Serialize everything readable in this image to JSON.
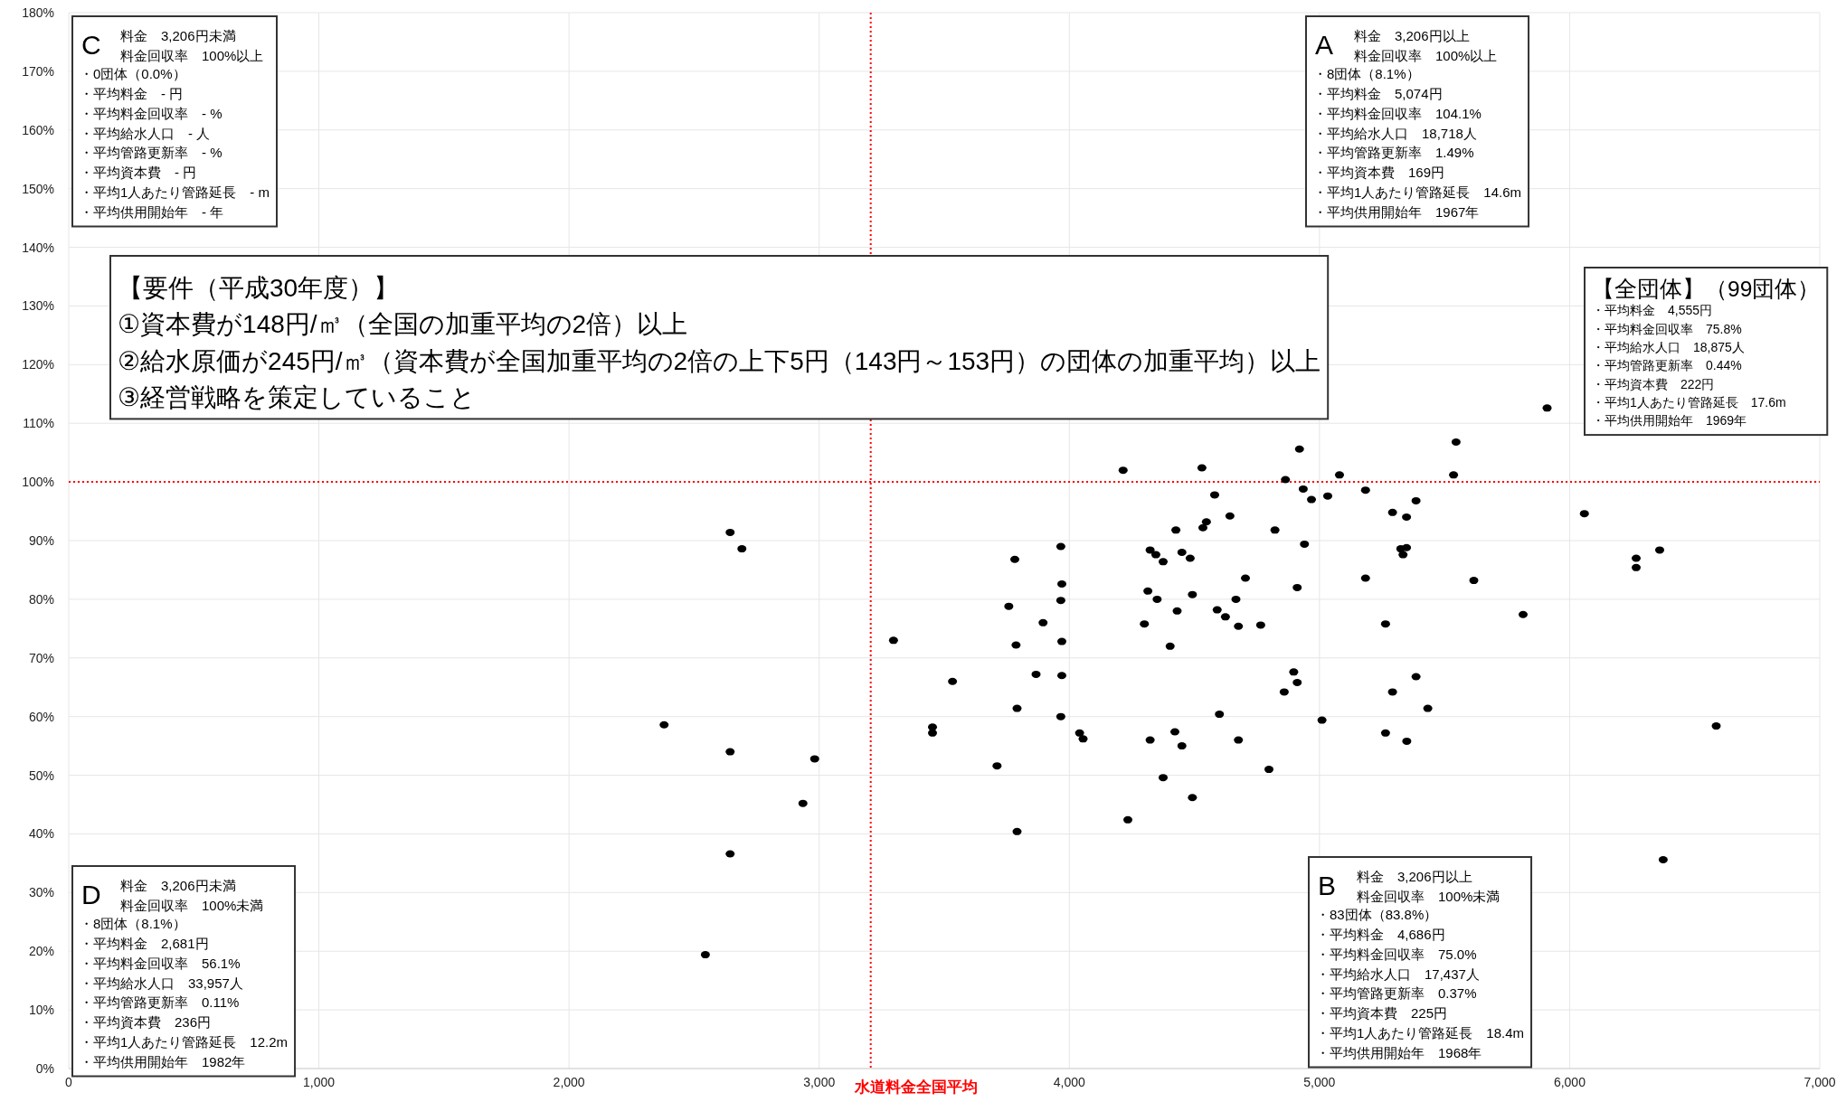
{
  "chart_data": {
    "type": "scatter",
    "color": "#000000",
    "marker": "circle",
    "grid": true,
    "xlim": [
      0,
      7000
    ],
    "ylim": [
      0,
      180
    ],
    "xticks": [
      0,
      {
        "value": 1000,
        "label": "1,000"
      },
      {
        "value": 2000,
        "label": "2,000"
      },
      {
        "value": 3000,
        "label": "3,000"
      },
      {
        "value": 4000,
        "label": "4,000"
      },
      {
        "value": 5000,
        "label": "5,000"
      },
      {
        "value": 6000,
        "label": "6,000"
      },
      {
        "value": 7000,
        "label": "7,000"
      }
    ],
    "yticks": [
      {
        "value": 0,
        "label": "0%"
      },
      {
        "value": 10,
        "label": "10%"
      },
      {
        "value": 20,
        "label": "20%"
      },
      {
        "value": 30,
        "label": "30%"
      },
      {
        "value": 40,
        "label": "40%"
      },
      {
        "value": 50,
        "label": "50%"
      },
      {
        "value": 60,
        "label": "60%"
      },
      {
        "value": 70,
        "label": "70%"
      },
      {
        "value": 80,
        "label": "80%"
      },
      {
        "value": 90,
        "label": "90%"
      },
      {
        "value": 100,
        "label": "100%"
      },
      {
        "value": 110,
        "label": "110%"
      },
      {
        "value": 120,
        "label": "120%"
      },
      {
        "value": 130,
        "label": "130%"
      },
      {
        "value": 140,
        "label": "140%"
      },
      {
        "value": 150,
        "label": "150%"
      },
      {
        "value": 160,
        "label": "160%"
      },
      {
        "value": 170,
        "label": "170%"
      },
      {
        "value": 180,
        "label": "180%"
      }
    ],
    "x": [
      5910,
      5546,
      4920,
      4215,
      4530,
      5080,
      5536,
      4864,
      4935,
      4581,
      4968,
      5033,
      5184,
      5386,
      6059,
      5292,
      5348,
      4642,
      4548,
      4534,
      4426,
      4822,
      4940,
      5325,
      5348,
      5334,
      4323,
      4346,
      4375,
      4450,
      4483,
      3966,
      3782,
      2644,
      2691,
      6266,
      6266,
      6360,
      5617,
      4704,
      5184,
      4911,
      3970,
      4314,
      4351,
      4492,
      4666,
      4591,
      4624,
      4676,
      4431,
      3758,
      3966,
      3895,
      4765,
      5814,
      4300,
      5264,
      3297,
      3970,
      4403,
      3787,
      3867,
      3970,
      4897,
      4911,
      3533,
      5386,
      4859,
      5292,
      3791,
      3966,
      4600,
      5433,
      5010,
      2380,
      6586,
      3453,
      3453,
      4041,
      4055,
      4422,
      4323,
      4450,
      4676,
      5264,
      5349,
      2644,
      2982,
      3711,
      4798,
      4375,
      2935,
      4492,
      3791,
      4234,
      2644,
      6374,
      2545
    ],
    "values": [
      112.6,
      106.8,
      105.6,
      102.0,
      102.4,
      101.2,
      101.2,
      100.4,
      98.8,
      97.8,
      97.0,
      97.6,
      98.6,
      96.8,
      94.6,
      94.8,
      94.0,
      94.2,
      93.2,
      92.2,
      91.8,
      91.8,
      89.4,
      88.6,
      88.8,
      87.6,
      88.4,
      87.6,
      86.4,
      88.0,
      87.0,
      89.0,
      86.8,
      91.4,
      88.6,
      87.0,
      85.4,
      88.4,
      83.2,
      83.6,
      83.6,
      82.0,
      82.6,
      81.4,
      80.0,
      80.8,
      80.0,
      78.2,
      77.0,
      75.4,
      78.0,
      78.8,
      79.8,
      76.0,
      75.6,
      77.4,
      75.8,
      75.8,
      73.0,
      72.8,
      72.0,
      72.2,
      67.2,
      67.0,
      67.6,
      65.8,
      66.0,
      66.8,
      64.2,
      64.2,
      61.4,
      60.0,
      60.4,
      61.4,
      59.4,
      58.6,
      58.4,
      58.2,
      57.2,
      57.2,
      56.2,
      57.4,
      56.0,
      55.0,
      56.0,
      57.2,
      55.8,
      54.0,
      52.8,
      51.6,
      51.0,
      49.6,
      45.2,
      46.2,
      40.4,
      42.4,
      36.6,
      35.6,
      19.4
    ],
    "ref_lines": [
      {
        "axis": "x",
        "value": 3206,
        "label": "水道料金全国平均",
        "color": "#ff0000",
        "line_style": "dotted"
      },
      {
        "axis": "y",
        "value": 100,
        "color": "#ff0000",
        "line_style": "dotted"
      }
    ],
    "annotations": [
      "C",
      "料金　3,206円未満",
      "料金回収率　100%以上",
      "・0団体（0.0%）",
      "・平均料金　- 円",
      "・平均料金回収率　- %",
      "・平均給水人口　- 人",
      "・平均管路更新率　- %",
      "・平均資本費　- 円",
      "・平均1人あたり管路延長　- m",
      "・平均供用開始年　- 年",
      "A",
      "料金　3,206円以上",
      "料金回収率　100%以上",
      "・8団体（8.1%）",
      "・平均料金　5,074円",
      "・平均料金回収率　104.1%",
      "・平均給水人口　18,718人",
      "・平均管路更新率　1.49%",
      "・平均資本費　169円",
      "・平均1人あたり管路延長　14.6m",
      "・平均供用開始年　1967年",
      "【要件（平成30年度）】",
      "①資本費が148円/㎥（全国の加重平均の2倍）以上",
      "②給水原価が245円/㎥（資本費が全国加重平均の2倍の上下5円（143円～153円）の団体の加重平均）以上",
      "③経営戦略を策定していること",
      "【全団体】（99団体）",
      "・平均料金　4,555円",
      "・平均料金回収率　75.8%",
      "・平均給水人口　18,875人",
      "・平均管路更新率　0.44%",
      "・平均資本費　222円",
      "・平均1人あたり管路延長　17.6m",
      "・平均供用開始年　1969年",
      "D",
      "料金　3,206円未満",
      "料金回収率　100%未満",
      "・8団体（8.1%）",
      "・平均料金　2,681円",
      "・平均料金回収率　56.1%",
      "・平均給水人口　33,957人",
      "・平均管路更新率　0.11%",
      "・平均資本費　236円",
      "・平均1人あたり管路延長　12.2m",
      "・平均供用開始年　1982年",
      "B",
      "料金　3,206円以上",
      "料金回収率　100%未満",
      "・83団体（83.8%）",
      "・平均料金　4,686円",
      "・平均料金回収率　75.0%",
      "・平均給水人口　17,437人",
      "・平均管路更新率　0.37%",
      "・平均資本費　225円",
      "・平均1人あたり管路延長　18.4m",
      "・平均供用開始年　1968年"
    ]
  }
}
